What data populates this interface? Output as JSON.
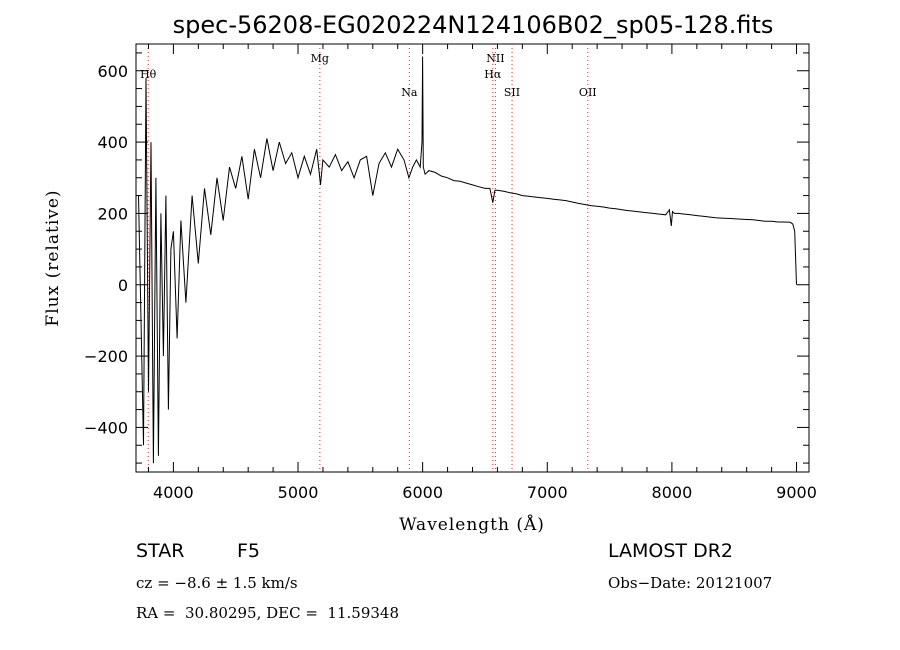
{
  "chart_data": {
    "type": "line",
    "title": "spec-56208-EG020224N124106B02_sp05-128.fits",
    "xlabel": "Wavelength (Å)",
    "ylabel": "Flux (relative)",
    "xlim": [
      3700,
      9100
    ],
    "ylim": [
      -525,
      675
    ],
    "xticks": [
      4000,
      5000,
      6000,
      7000,
      8000,
      9000
    ],
    "yticks": [
      -400,
      -200,
      0,
      200,
      400,
      600
    ],
    "grid": false,
    "series": [
      {
        "x": [
          3720,
          3760,
          3780,
          3800,
          3820,
          3840,
          3860,
          3880,
          3900,
          3920,
          3940,
          3960,
          3980,
          4000,
          4030,
          4060,
          4100,
          4150,
          4200,
          4250,
          4300,
          4350,
          4400,
          4450,
          4500,
          4550,
          4600,
          4650,
          4700,
          4750,
          4800,
          4850,
          4900,
          4950,
          5000,
          5050,
          5100,
          5150,
          5180,
          5200,
          5250,
          5300,
          5350,
          5400,
          5450,
          5500,
          5550,
          5600,
          5650,
          5700,
          5750,
          5800,
          5850,
          5890,
          5920,
          5950,
          5980,
          5995,
          6000,
          6005,
          6020,
          6050,
          6100,
          6150,
          6200,
          6250,
          6300,
          6350,
          6400,
          6450,
          6500,
          6540,
          6563,
          6580,
          6600,
          6650,
          6700,
          6750,
          6800,
          6850,
          6900,
          6950,
          7000,
          7050,
          7100,
          7150,
          7200,
          7250,
          7300,
          7350,
          7400,
          7450,
          7500,
          7550,
          7600,
          7650,
          7700,
          7750,
          7800,
          7850,
          7900,
          7950,
          7980,
          7995,
          8005,
          8020,
          8050,
          8100,
          8150,
          8200,
          8250,
          8300,
          8350,
          8400,
          8450,
          8500,
          8550,
          8600,
          8650,
          8700,
          8750,
          8800,
          8850,
          8900,
          8950,
          8970,
          8985,
          9000
        ],
        "values": [
          250,
          -450,
          580,
          -300,
          400,
          -500,
          300,
          -480,
          200,
          -200,
          250,
          -350,
          100,
          150,
          -150,
          180,
          -50,
          250,
          60,
          270,
          140,
          300,
          180,
          330,
          270,
          360,
          240,
          380,
          300,
          410,
          320,
          400,
          340,
          370,
          300,
          360,
          310,
          380,
          280,
          350,
          330,
          365,
          320,
          345,
          300,
          350,
          360,
          250,
          340,
          370,
          330,
          380,
          350,
          300,
          330,
          350,
          330,
          400,
          640,
          330,
          310,
          320,
          315,
          305,
          300,
          292,
          290,
          285,
          280,
          275,
          270,
          270,
          230,
          265,
          265,
          262,
          258,
          255,
          250,
          248,
          246,
          244,
          242,
          240,
          238,
          236,
          232,
          228,
          225,
          222,
          220,
          218,
          215,
          213,
          210,
          208,
          206,
          204,
          202,
          200,
          198,
          196,
          210,
          165,
          205,
          200,
          200,
          198,
          196,
          194,
          192,
          190,
          188,
          187,
          186,
          185,
          184,
          183,
          182,
          180,
          178,
          178,
          176,
          176,
          175,
          170,
          150,
          0
        ]
      }
    ],
    "line_markers": [
      {
        "label": "Hθ",
        "x": 3798
      },
      {
        "label": "Mg",
        "x": 5175
      },
      {
        "label": "Na",
        "x": 5893
      },
      {
        "label": "NII",
        "x": 6584
      },
      {
        "label": "Hα",
        "x": 6563
      },
      {
        "label": "SII",
        "x": 6717
      },
      {
        "label": "OII",
        "x": 7325
      }
    ]
  },
  "info": {
    "object_type": "STAR",
    "subclass": "F5",
    "survey": "LAMOST DR2",
    "cz": "cz = −8.6 ± 1.5 km/s",
    "obs_date": "Obs−Date: 20121007",
    "radec": "RA =  30.80295, DEC =  11.59348"
  }
}
